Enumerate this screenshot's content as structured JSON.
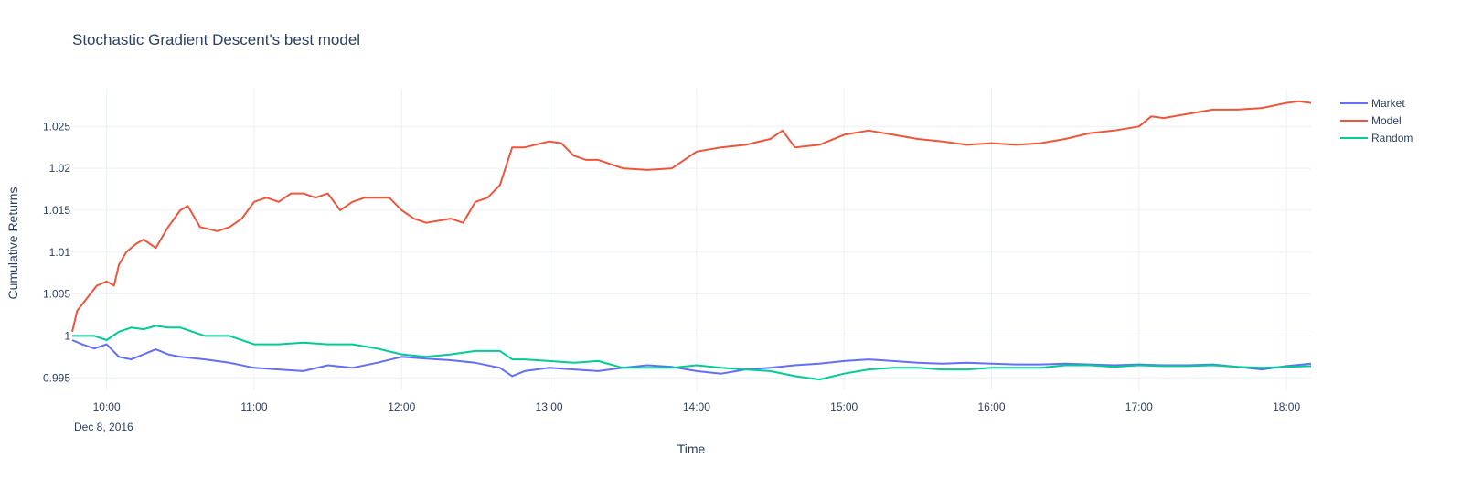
{
  "chart_data": {
    "type": "line",
    "title": "Stochastic Gradient Descent's best model",
    "xlabel": "Time",
    "ylabel": "Cumulative Returns",
    "date_label": "Dec 8, 2016",
    "x_ticks": [
      "10:00",
      "11:00",
      "12:00",
      "13:00",
      "14:00",
      "15:00",
      "16:00",
      "17:00",
      "18:00"
    ],
    "y_ticks": [
      "0.995",
      "1",
      "1.005",
      "1.01",
      "1.015",
      "1.02",
      "1.025"
    ],
    "x_range": [
      "09:46",
      "18:10"
    ],
    "ylim": [
      0.9935,
      1.0295
    ],
    "grid": true,
    "legend_position": "top-right",
    "series": [
      {
        "name": "Market",
        "color": "#636efa",
        "x": [
          "09:46",
          "09:50",
          "09:55",
          "10:00",
          "10:05",
          "10:10",
          "10:15",
          "10:20",
          "10:25",
          "10:30",
          "10:40",
          "10:50",
          "11:00",
          "11:10",
          "11:20",
          "11:30",
          "11:40",
          "11:50",
          "12:00",
          "12:10",
          "12:20",
          "12:30",
          "12:40",
          "12:45",
          "12:50",
          "13:00",
          "13:10",
          "13:20",
          "13:30",
          "13:40",
          "13:50",
          "14:00",
          "14:10",
          "14:20",
          "14:30",
          "14:40",
          "14:50",
          "15:00",
          "15:10",
          "15:20",
          "15:30",
          "15:40",
          "15:50",
          "16:00",
          "16:10",
          "16:20",
          "16:30",
          "16:40",
          "16:50",
          "17:00",
          "17:10",
          "17:20",
          "17:30",
          "17:40",
          "17:50",
          "18:00",
          "18:10"
        ],
        "values": [
          0.9995,
          0.999,
          0.9985,
          0.999,
          0.9975,
          0.9972,
          0.9978,
          0.9984,
          0.9978,
          0.9975,
          0.9972,
          0.9968,
          0.9962,
          0.996,
          0.9958,
          0.9965,
          0.9962,
          0.9968,
          0.9975,
          0.9973,
          0.9971,
          0.9968,
          0.9962,
          0.9952,
          0.9958,
          0.9962,
          0.996,
          0.9958,
          0.9962,
          0.9965,
          0.9963,
          0.9958,
          0.9955,
          0.996,
          0.9962,
          0.9965,
          0.9967,
          0.997,
          0.9972,
          0.997,
          0.9968,
          0.9967,
          0.9968,
          0.9967,
          0.9966,
          0.9966,
          0.9967,
          0.9966,
          0.9965,
          0.9966,
          0.9965,
          0.9965,
          0.9966,
          0.9963,
          0.996,
          0.9964,
          0.9967
        ]
      },
      {
        "name": "Model",
        "color": "#ef553b",
        "x": [
          "09:46",
          "09:48",
          "09:52",
          "09:56",
          "10:00",
          "10:03",
          "10:05",
          "10:08",
          "10:12",
          "10:15",
          "10:20",
          "10:25",
          "10:30",
          "10:33",
          "10:38",
          "10:45",
          "10:50",
          "10:55",
          "11:00",
          "11:05",
          "11:10",
          "11:15",
          "11:20",
          "11:25",
          "11:30",
          "11:35",
          "11:40",
          "11:45",
          "11:50",
          "11:55",
          "12:00",
          "12:05",
          "12:10",
          "12:20",
          "12:25",
          "12:30",
          "12:35",
          "12:40",
          "12:45",
          "12:50",
          "13:00",
          "13:05",
          "13:10",
          "13:15",
          "13:20",
          "13:30",
          "13:40",
          "13:50",
          "14:00",
          "14:10",
          "14:20",
          "14:30",
          "14:35",
          "14:40",
          "14:50",
          "15:00",
          "15:10",
          "15:20",
          "15:30",
          "15:40",
          "15:50",
          "16:00",
          "16:10",
          "16:20",
          "16:30",
          "16:40",
          "16:50",
          "17:00",
          "17:05",
          "17:10",
          "17:20",
          "17:30",
          "17:40",
          "17:50",
          "18:00",
          "18:05",
          "18:10"
        ],
        "values": [
          1.0005,
          1.003,
          1.0045,
          1.006,
          1.0065,
          1.006,
          1.0085,
          1.01,
          1.011,
          1.0115,
          1.0105,
          1.013,
          1.015,
          1.0155,
          1.013,
          1.0125,
          1.013,
          1.014,
          1.016,
          1.0165,
          1.016,
          1.017,
          1.017,
          1.0165,
          1.017,
          1.015,
          1.016,
          1.0165,
          1.0165,
          1.0165,
          1.015,
          1.014,
          1.0135,
          1.014,
          1.0135,
          1.016,
          1.0165,
          1.018,
          1.0225,
          1.0225,
          1.0232,
          1.023,
          1.0215,
          1.021,
          1.021,
          1.02,
          1.0198,
          1.02,
          1.022,
          1.0225,
          1.0228,
          1.0235,
          1.0245,
          1.0225,
          1.0228,
          1.024,
          1.0245,
          1.024,
          1.0235,
          1.0232,
          1.0228,
          1.023,
          1.0228,
          1.023,
          1.0235,
          1.0242,
          1.0245,
          1.025,
          1.0262,
          1.026,
          1.0265,
          1.027,
          1.027,
          1.0272,
          1.0278,
          1.028,
          1.0278
        ]
      },
      {
        "name": "Random",
        "color": "#00cc96",
        "x": [
          "09:46",
          "09:55",
          "10:00",
          "10:05",
          "10:10",
          "10:15",
          "10:20",
          "10:25",
          "10:30",
          "10:40",
          "10:50",
          "11:00",
          "11:10",
          "11:20",
          "11:30",
          "11:40",
          "11:50",
          "12:00",
          "12:10",
          "12:20",
          "12:30",
          "12:40",
          "12:45",
          "12:50",
          "13:00",
          "13:10",
          "13:20",
          "13:30",
          "13:40",
          "13:50",
          "14:00",
          "14:10",
          "14:20",
          "14:30",
          "14:40",
          "14:50",
          "15:00",
          "15:10",
          "15:20",
          "15:30",
          "15:40",
          "15:50",
          "16:00",
          "16:10",
          "16:20",
          "16:30",
          "16:40",
          "16:50",
          "17:00",
          "17:10",
          "17:20",
          "17:30",
          "17:40",
          "17:50",
          "18:00",
          "18:10"
        ],
        "values": [
          1.0,
          1.0,
          0.9995,
          1.0005,
          1.001,
          1.0008,
          1.0012,
          1.001,
          1.001,
          1.0,
          1.0,
          0.999,
          0.999,
          0.9992,
          0.999,
          0.999,
          0.9985,
          0.9978,
          0.9975,
          0.9978,
          0.9982,
          0.9982,
          0.9972,
          0.9972,
          0.997,
          0.9968,
          0.997,
          0.9962,
          0.9962,
          0.9962,
          0.9965,
          0.9962,
          0.996,
          0.9958,
          0.9952,
          0.9948,
          0.9955,
          0.996,
          0.9962,
          0.9962,
          0.996,
          0.996,
          0.9962,
          0.9962,
          0.9962,
          0.9965,
          0.9965,
          0.9963,
          0.9965,
          0.9964,
          0.9964,
          0.9965,
          0.9963,
          0.9962,
          0.9963,
          0.9964
        ]
      }
    ]
  }
}
